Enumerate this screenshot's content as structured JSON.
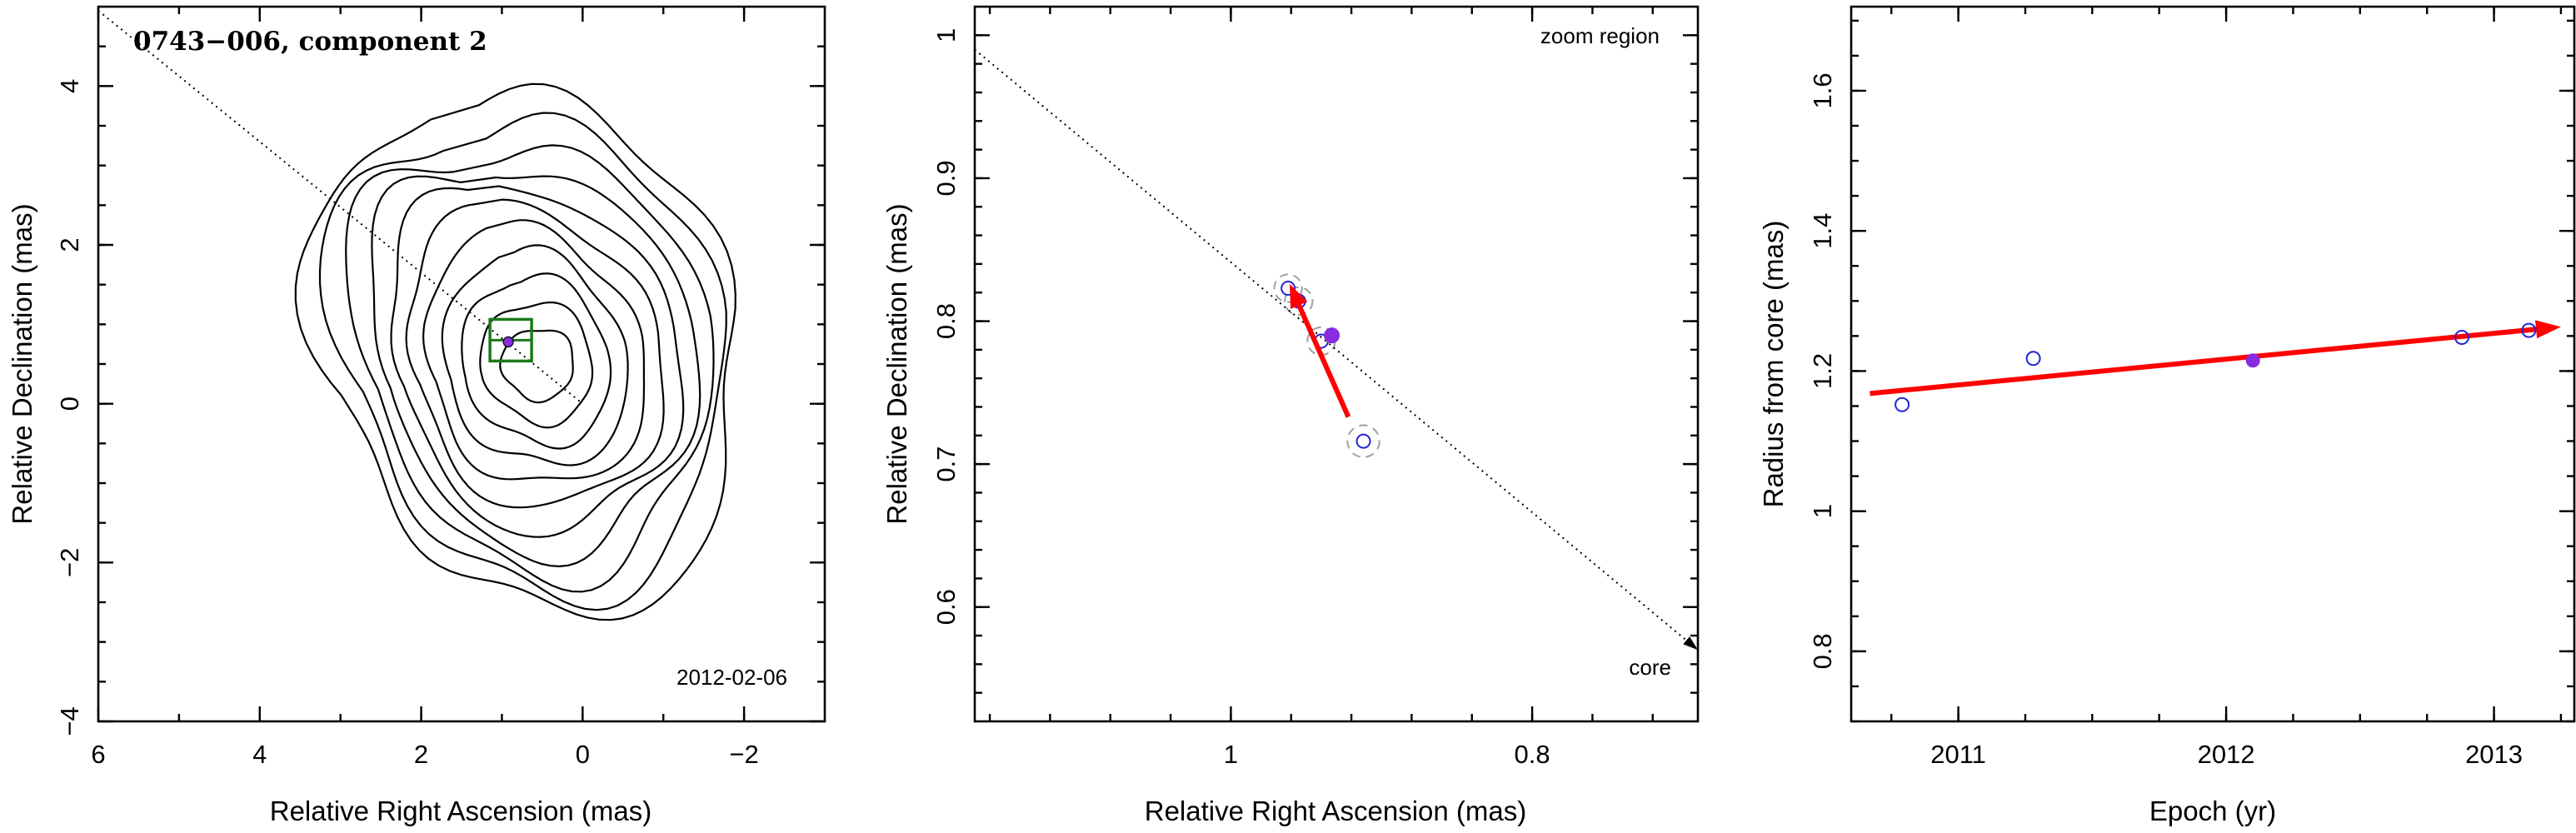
{
  "chart_data": [
    {
      "type": "contour",
      "title": "0743−006, component 2",
      "annotation": "2012-02-06",
      "xlabel": "Relative Right Ascension (mas)",
      "ylabel": "Relative Declination (mas)",
      "xlim": [
        6,
        -3
      ],
      "ylim": [
        -4,
        5
      ],
      "xticks": [
        6,
        4,
        2,
        0,
        -2
      ],
      "yticks": [
        -4,
        -2,
        0,
        2,
        4
      ],
      "xtick_labels": [
        "6",
        "4",
        "2",
        "0",
        "−2"
      ],
      "ytick_labels": [
        "−4",
        "−2",
        "0",
        "2",
        "4"
      ],
      "direction_line": [
        [
          6,
          4.95
        ],
        [
          0,
          0
        ]
      ],
      "core_center": [
        0.55,
        0.5
      ],
      "component_position": [
        0.89,
        0.8
      ],
      "contour_levels": 11,
      "colors": {
        "contours": "#000000",
        "box": "#1a7a1a",
        "marker": "#8a2be2"
      }
    },
    {
      "type": "scatter",
      "annotation_top": "zoom region",
      "annotation_bottom": "core",
      "xlabel": "Relative Right Ascension (mas)",
      "ylabel": "Relative Declination (mas)",
      "xlim": [
        1.17,
        0.69
      ],
      "ylim": [
        0.52,
        1.02
      ],
      "xticks": [
        1,
        0.8
      ],
      "yticks": [
        0.6,
        0.7,
        0.8,
        0.9,
        1.0
      ],
      "xtick_labels": [
        "1",
        "0.8"
      ],
      "ytick_labels": [
        "0.6",
        "0.7",
        "0.8",
        "0.9",
        "1"
      ],
      "points": [
        {
          "x": 0.962,
          "y": 0.823
        },
        {
          "x": 0.955,
          "y": 0.814
        },
        {
          "x": 0.94,
          "y": 0.786
        },
        {
          "x": 0.912,
          "y": 0.716
        }
      ],
      "highlight_point": {
        "x": 0.933,
        "y": 0.79
      },
      "error_circles": [
        {
          "x": 0.962,
          "y": 0.823,
          "r": 0.092
        },
        {
          "x": 0.955,
          "y": 0.814,
          "r": 0.092
        },
        {
          "x": 0.94,
          "y": 0.786,
          "r": 0.092
        },
        {
          "x": 0.912,
          "y": 0.716,
          "r": 0.106
        }
      ],
      "motion_arrow": {
        "from": [
          0.922,
          0.733
        ],
        "to": [
          0.961,
          0.826
        ]
      },
      "direction_line": [
        [
          1.17,
          0.99
        ],
        [
          0.69,
          0.57
        ]
      ],
      "colors": {
        "points": "#2323d9",
        "highlight": "#8a2be2",
        "arrow": "#ff0000",
        "circles": "#a0a0a0"
      }
    },
    {
      "type": "scatter",
      "xlabel": "Epoch (yr)",
      "ylabel": "Radius from core (mas)",
      "xlim": [
        2010.6,
        2013.3
      ],
      "ylim": [
        0.7,
        1.72
      ],
      "xticks": [
        2011,
        2012,
        2013
      ],
      "yticks": [
        0.8,
        1,
        1.2,
        1.4,
        1.6
      ],
      "xtick_labels": [
        "2011",
        "2012",
        "2013"
      ],
      "ytick_labels": [
        "0.8",
        "1",
        "1.2",
        "1.4",
        "1.6"
      ],
      "points": [
        {
          "x": 2010.79,
          "y": 1.152
        },
        {
          "x": 2011.28,
          "y": 1.218
        },
        {
          "x": 2012.88,
          "y": 1.248
        },
        {
          "x": 2013.13,
          "y": 1.258
        }
      ],
      "highlight_point": {
        "x": 2012.1,
        "y": 1.215
      },
      "fit_arrow": {
        "from": [
          2010.67,
          1.168
        ],
        "to": [
          2013.25,
          1.263
        ]
      },
      "colors": {
        "points": "#2323d9",
        "highlight": "#8a2be2",
        "arrow": "#ff0000"
      }
    }
  ]
}
